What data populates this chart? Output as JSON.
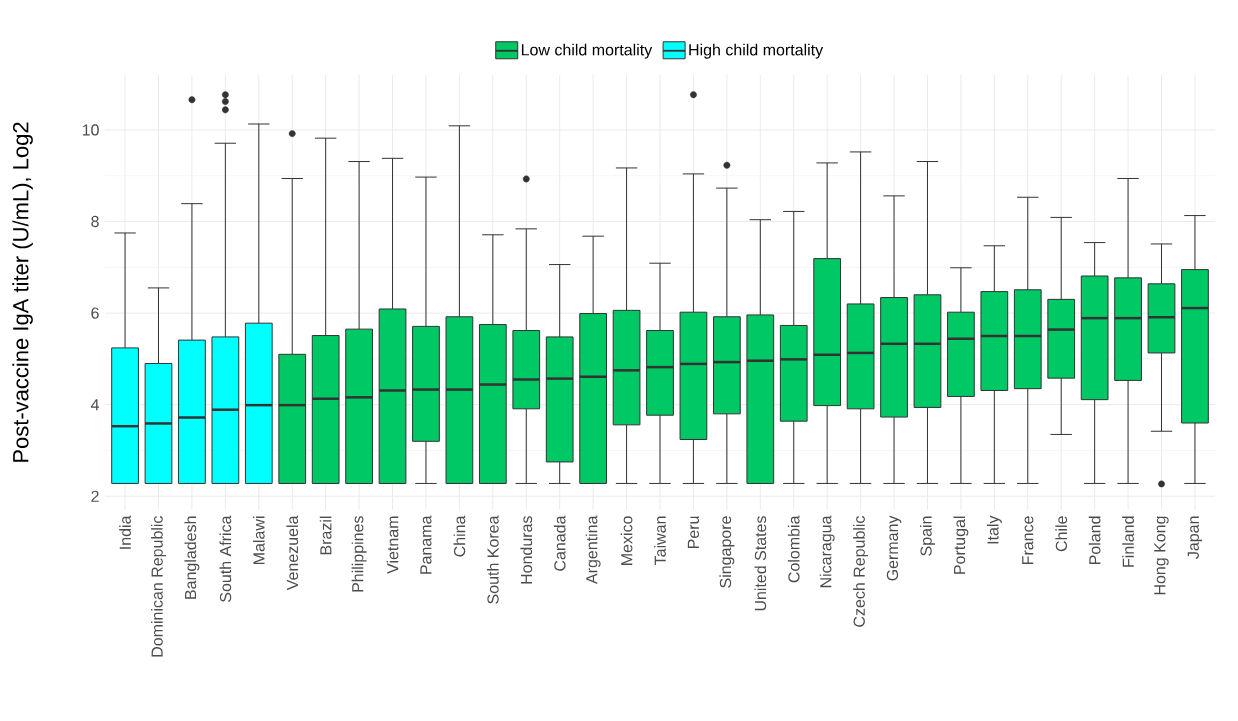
{
  "chart_data": {
    "type": "box",
    "ylabel": "Post-vaccine IgA titer (U/mL), Log2",
    "categories": [
      "India",
      "Dominican Republic",
      "Bangladesh",
      "South Africa",
      "Malawi",
      "Venezuela",
      "Brazil",
      "Philippines",
      "Vietnam",
      "Panama",
      "China",
      "South Korea",
      "Honduras",
      "Canada",
      "Argentina",
      "Mexico",
      "Taiwan",
      "Peru",
      "Singapore",
      "United States",
      "Colombia",
      "Nicaragua",
      "Czech Republic",
      "Germany",
      "Spain",
      "Portugal",
      "Italy",
      "France",
      "Chile",
      "Poland",
      "Finland",
      "Hong Kong",
      "Japan"
    ],
    "series": [
      {
        "name": "Low child mortality",
        "color": "#00c864",
        "boxes": [
          null,
          null,
          null,
          null,
          null,
          {
            "low": 2.28,
            "q1": 2.28,
            "median": 3.99,
            "q3": 5.1,
            "high": 8.94,
            "outliers": [
              9.92
            ]
          },
          {
            "low": 2.28,
            "q1": 2.28,
            "median": 4.13,
            "q3": 5.51,
            "high": 9.82
          },
          {
            "low": 2.28,
            "q1": 2.28,
            "median": 4.16,
            "q3": 5.65,
            "high": 9.31
          },
          {
            "low": 2.28,
            "q1": 2.28,
            "median": 4.31,
            "q3": 6.09,
            "high": 9.38
          },
          {
            "low": 2.28,
            "q1": 3.2,
            "median": 4.33,
            "q3": 5.71,
            "high": 8.97
          },
          {
            "low": 2.28,
            "q1": 2.28,
            "median": 4.33,
            "q3": 5.92,
            "high": 10.09
          },
          {
            "low": 2.28,
            "q1": 2.28,
            "median": 4.44,
            "q3": 5.75,
            "high": 7.71
          },
          {
            "low": 2.28,
            "q1": 3.91,
            "median": 4.55,
            "q3": 5.62,
            "high": 7.84,
            "outliers": [
              8.93
            ]
          },
          {
            "low": 2.28,
            "q1": 2.75,
            "median": 4.57,
            "q3": 5.48,
            "high": 7.06
          },
          {
            "low": 2.28,
            "q1": 2.28,
            "median": 4.61,
            "q3": 5.99,
            "high": 7.68
          },
          {
            "low": 2.28,
            "q1": 3.56,
            "median": 4.75,
            "q3": 6.06,
            "high": 9.17
          },
          {
            "low": 2.28,
            "q1": 3.77,
            "median": 4.82,
            "q3": 5.62,
            "high": 7.09
          },
          {
            "low": 2.28,
            "q1": 3.24,
            "median": 4.89,
            "q3": 6.02,
            "high": 9.04,
            "outliers": [
              10.77
            ]
          },
          {
            "low": 2.28,
            "q1": 3.8,
            "median": 4.93,
            "q3": 5.92,
            "high": 8.73,
            "outliers": [
              9.23
            ]
          },
          {
            "low": 2.28,
            "q1": 2.28,
            "median": 4.96,
            "q3": 5.96,
            "high": 8.04
          },
          {
            "low": 2.28,
            "q1": 3.64,
            "median": 4.99,
            "q3": 5.73,
            "high": 8.22
          },
          {
            "low": 2.28,
            "q1": 3.98,
            "median": 5.09,
            "q3": 7.19,
            "high": 9.28
          },
          {
            "low": 2.28,
            "q1": 3.91,
            "median": 5.13,
            "q3": 6.2,
            "high": 9.52
          },
          {
            "low": 2.28,
            "q1": 3.73,
            "median": 5.33,
            "q3": 6.34,
            "high": 8.56
          },
          {
            "low": 2.28,
            "q1": 3.94,
            "median": 5.33,
            "q3": 6.4,
            "high": 9.31
          },
          {
            "low": 2.28,
            "q1": 4.18,
            "median": 5.44,
            "q3": 6.02,
            "high": 6.99
          },
          {
            "low": 2.28,
            "q1": 4.31,
            "median": 5.5,
            "q3": 6.47,
            "high": 7.47
          },
          {
            "low": 2.28,
            "q1": 4.35,
            "median": 5.5,
            "q3": 6.51,
            "high": 8.53
          },
          {
            "low": 3.35,
            "q1": 4.58,
            "median": 5.64,
            "q3": 6.3,
            "high": 8.09
          },
          {
            "low": 2.28,
            "q1": 4.11,
            "median": 5.89,
            "q3": 6.81,
            "high": 7.54
          },
          {
            "low": 2.28,
            "q1": 4.53,
            "median": 5.89,
            "q3": 6.77,
            "high": 8.94
          },
          {
            "low": 3.42,
            "q1": 5.13,
            "median": 5.91,
            "q3": 6.64,
            "high": 7.51,
            "outliers": [
              2.27
            ]
          },
          {
            "low": 2.28,
            "q1": 3.6,
            "median": 6.11,
            "q3": 6.95,
            "high": 8.13
          }
        ]
      },
      {
        "name": "High child mortality",
        "color": "#00ffff",
        "boxes": [
          {
            "low": 2.28,
            "q1": 2.28,
            "median": 3.53,
            "q3": 5.24,
            "high": 7.75
          },
          {
            "low": 2.28,
            "q1": 2.28,
            "median": 3.59,
            "q3": 4.9,
            "high": 6.55
          },
          {
            "low": 2.28,
            "q1": 2.28,
            "median": 3.72,
            "q3": 5.41,
            "high": 8.39,
            "outliers": [
              10.66
            ]
          },
          {
            "low": 2.28,
            "q1": 2.28,
            "median": 3.89,
            "q3": 5.48,
            "high": 9.71,
            "outliers": [
              10.77,
              10.62,
              10.44
            ]
          },
          {
            "low": 2.28,
            "q1": 2.28,
            "median": 3.99,
            "q3": 5.78,
            "high": 10.13
          },
          null,
          null,
          null,
          null,
          null,
          null,
          null,
          null,
          null,
          null,
          null,
          null,
          null,
          null,
          null,
          null,
          null,
          null,
          null,
          null,
          null,
          null,
          null,
          null,
          null,
          null,
          null,
          null
        ]
      }
    ],
    "ylim": [
      1.7,
      11.2
    ],
    "yticks": [
      2,
      4,
      6,
      8,
      10
    ],
    "grid": true,
    "legend": "top"
  }
}
